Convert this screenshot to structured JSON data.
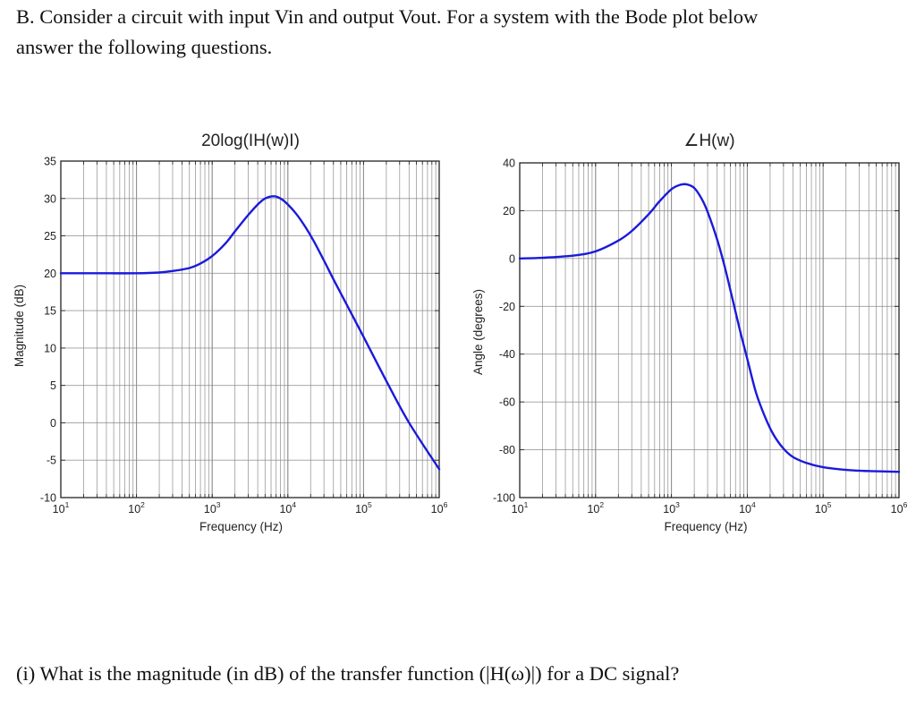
{
  "document": {
    "intro_line1": "B. Consider a circuit with input Vin and output Vout. For a system with the Bode plot below",
    "intro_line2": "answer the following questions.",
    "question_i": "(i) What is the magnitude (in dB) of the transfer function (|H(ω)|) for a DC signal?"
  },
  "colors": {
    "curve": "#1a1adb",
    "grid": "#8a8a8a",
    "axis": "#222222",
    "text": "#111111"
  },
  "chart_data": [
    {
      "type": "line",
      "title": "20log(IH(w)I)",
      "xlabel": "Frequency (Hz)",
      "ylabel": "Magnitude (dB)",
      "xscale": "log",
      "xlim": [
        10,
        1000000
      ],
      "ylim": [
        -10,
        35
      ],
      "xticks": [
        {
          "base": "10",
          "exp": "1"
        },
        {
          "base": "10",
          "exp": "2"
        },
        {
          "base": "10",
          "exp": "3"
        },
        {
          "base": "10",
          "exp": "4"
        },
        {
          "base": "10",
          "exp": "5"
        },
        {
          "base": "10",
          "exp": "6"
        }
      ],
      "yticks": [
        35,
        30,
        25,
        20,
        15,
        10,
        5,
        0,
        -5,
        -10
      ],
      "grid": true,
      "legend": "none",
      "series": [
        {
          "name": "magnitude",
          "x": [
            10,
            30,
            100,
            200,
            300,
            500,
            700,
            1000,
            1500,
            2000,
            3000,
            4000,
            5000,
            6500,
            8000,
            10000,
            13000,
            17000,
            22000,
            30000,
            40000,
            60000,
            100000,
            200000,
            400000,
            1000000
          ],
          "y": [
            20,
            20,
            20,
            20.1,
            20.3,
            20.7,
            21.3,
            22.3,
            24.0,
            25.6,
            27.8,
            29.2,
            30.0,
            30.3,
            30.0,
            29.2,
            27.9,
            26.2,
            24.3,
            21.7,
            19.2,
            15.8,
            11.5,
            5.6,
            0,
            -6.2
          ]
        }
      ]
    },
    {
      "type": "line",
      "title": "∠H(w)",
      "xlabel": "Frequency (Hz)",
      "ylabel": "Angle (degrees)",
      "xscale": "log",
      "xlim": [
        10,
        1000000
      ],
      "ylim": [
        -100,
        40
      ],
      "xticks": [
        {
          "base": "10",
          "exp": "1"
        },
        {
          "base": "10",
          "exp": "2"
        },
        {
          "base": "10",
          "exp": "3"
        },
        {
          "base": "10",
          "exp": "4"
        },
        {
          "base": "10",
          "exp": "5"
        },
        {
          "base": "10",
          "exp": "6"
        }
      ],
      "yticks": [
        40,
        20,
        0,
        -20,
        -40,
        -60,
        -80,
        -100
      ],
      "grid": true,
      "legend": "none",
      "series": [
        {
          "name": "phase",
          "x": [
            10,
            20,
            50,
            100,
            200,
            300,
            500,
            700,
            1000,
            1300,
            1600,
            2000,
            2500,
            3000,
            4000,
            5000,
            6500,
            8000,
            10000,
            13000,
            17000,
            22000,
            30000,
            40000,
            60000,
            100000,
            200000,
            400000,
            1000000
          ],
          "y": [
            0,
            0.3,
            1.2,
            3.0,
            7.5,
            11.5,
            18.5,
            24.0,
            29.0,
            30.8,
            31.0,
            29.5,
            25.0,
            19.5,
            8.0,
            -3.0,
            -18.0,
            -30.0,
            -42.0,
            -56.0,
            -66.0,
            -73.5,
            -79.5,
            -83.0,
            -85.5,
            -87.3,
            -88.4,
            -88.9,
            -89.2
          ]
        }
      ]
    }
  ]
}
